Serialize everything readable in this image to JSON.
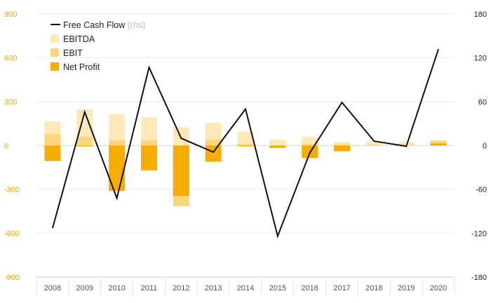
{
  "chart_data": {
    "type": "bar",
    "categories": [
      "2008",
      "2009",
      "2010",
      "2011",
      "2012",
      "2013",
      "2014",
      "2015",
      "2016",
      "2017",
      "2018",
      "2019",
      "2020"
    ],
    "ylim_left": [
      -900,
      900
    ],
    "yticks_left": [
      "900",
      "600",
      "300",
      "0",
      "-300",
      "-600",
      "-900"
    ],
    "ylim_right": [
      -180,
      180
    ],
    "yticks_right": [
      "180",
      "120",
      "60",
      "0",
      "-60",
      "-120",
      "-180"
    ],
    "legend_position": "top-left",
    "grid": true,
    "series": [
      {
        "name": "EBITDA",
        "type": "bar",
        "axis": "left",
        "color": "#fde9b8",
        "values": [
          165,
          250,
          215,
          195,
          125,
          155,
          95,
          40,
          60,
          25,
          30,
          25,
          40
        ]
      },
      {
        "name": "EBIT",
        "type": "bar",
        "axis": "left",
        "color": "#fdd57a",
        "values": [
          80,
          60,
          35,
          35,
          -415,
          40,
          10,
          -10,
          10,
          5,
          5,
          5,
          30
        ]
      },
      {
        "name": "Net Profit",
        "type": "bar",
        "axis": "left",
        "color": "#f6ad00",
        "values": [
          -105,
          -5,
          -310,
          -170,
          -345,
          -110,
          -5,
          -15,
          -85,
          -40,
          0,
          0,
          15
        ]
      },
      {
        "name": "Free Cash Flow",
        "name_suffix": "(rhs)",
        "type": "line",
        "axis": "right",
        "color": "#111111",
        "values": [
          -113,
          46,
          -72,
          107,
          10,
          -9,
          50,
          -124,
          -10,
          59,
          6,
          -1,
          132
        ]
      }
    ]
  }
}
